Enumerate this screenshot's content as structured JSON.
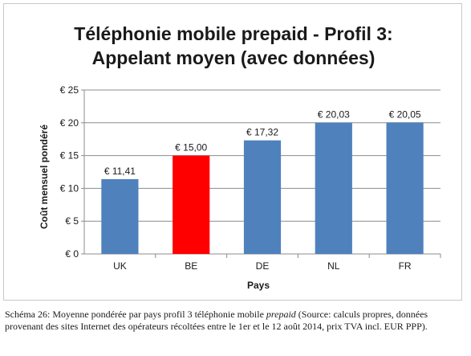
{
  "chart_data": {
    "type": "bar",
    "title_lines": [
      "Téléphonie mobile prepaid - Profil 3:",
      "Appelant moyen (avec données)"
    ],
    "xlabel": "Pays",
    "ylabel": "Coût mensuel pondéré",
    "categories": [
      "UK",
      "BE",
      "DE",
      "NL",
      "FR"
    ],
    "values": [
      11.41,
      15.0,
      17.32,
      20.03,
      20.05
    ],
    "value_labels": [
      "€ 11,41",
      "€ 15,00",
      "€ 17,32",
      "€ 20,03",
      "€ 20,05"
    ],
    "bar_colors": [
      "#4f81bd",
      "#ff0000",
      "#4f81bd",
      "#4f81bd",
      "#4f81bd"
    ],
    "ylim": [
      0,
      25
    ],
    "yticks": [
      0,
      5,
      10,
      15,
      20,
      25
    ],
    "ytick_labels": [
      "€ 0",
      "€ 5",
      "€ 10",
      "€ 15",
      "€ 20",
      "€ 25"
    ],
    "grid": true,
    "legend": "none"
  },
  "caption": {
    "prefix": "Schéma 26: Moyenne pondérée par pays profil 3 téléphonie mobile ",
    "italic": "prepaid",
    "suffix": " (Source: calculs propres, données provenant des sites Internet des opérateurs récoltées entre le 1er et le 12 août 2014, prix TVA incl. EUR PPP)."
  }
}
